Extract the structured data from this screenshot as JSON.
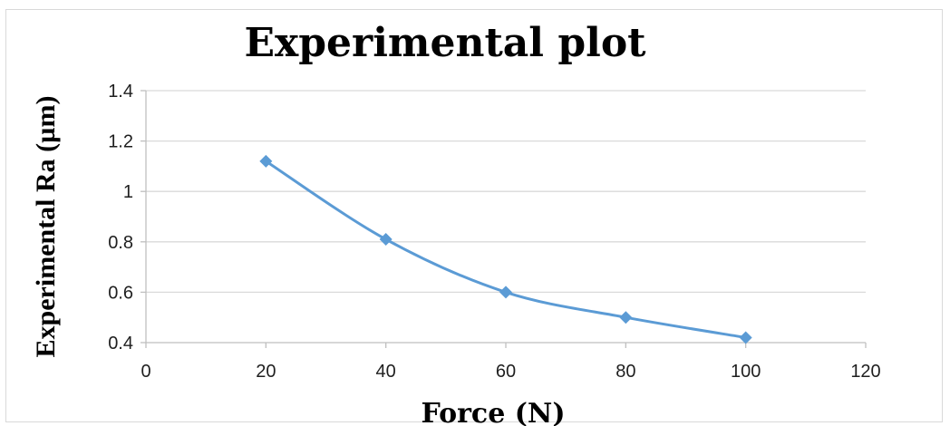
{
  "chart_data": {
    "type": "line",
    "title": "Experimental plot",
    "xlabel": "Force (N)",
    "ylabel": "Experimental Ra (µm)",
    "xlim": [
      0,
      120
    ],
    "ylim": [
      0.4,
      1.4
    ],
    "x_ticks": [
      0,
      20,
      40,
      60,
      80,
      100,
      120
    ],
    "y_ticks": [
      0.4,
      0.6,
      0.8,
      1,
      1.2,
      1.4
    ],
    "grid": true,
    "legend": "none",
    "series": [
      {
        "x": [
          20,
          40,
          60,
          80,
          100
        ],
        "values": [
          1.12,
          0.81,
          0.6,
          0.5,
          0.42
        ],
        "color": "#5b9bd5",
        "marker": "diamond",
        "smooth": true
      }
    ]
  }
}
